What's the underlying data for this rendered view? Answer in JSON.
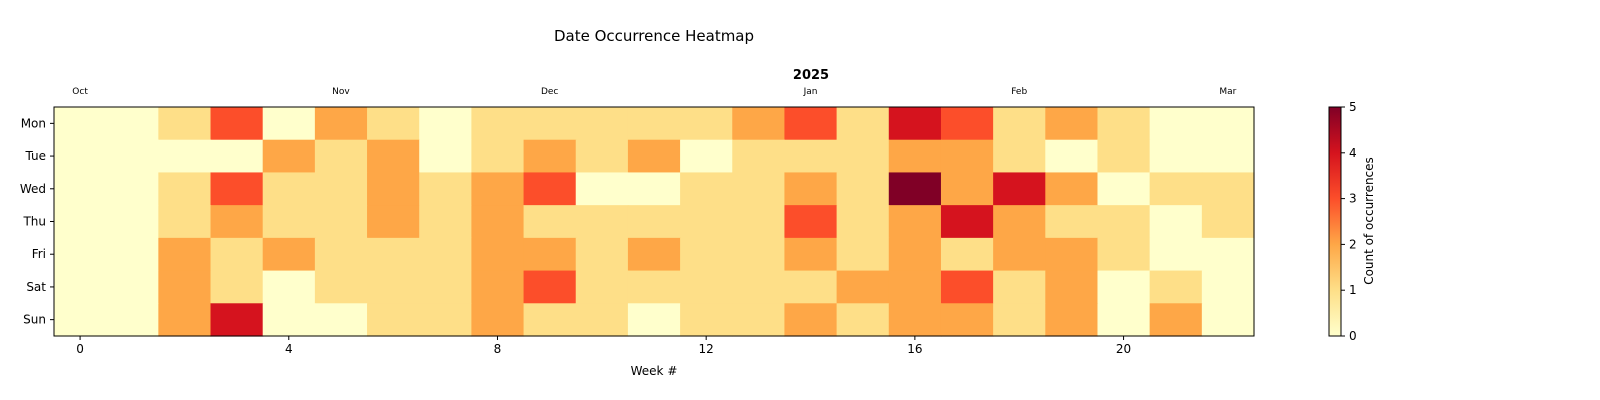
{
  "chart_data": {
    "type": "heatmap",
    "title": "Date Occurrence Heatmap",
    "xlabel": "Week #",
    "ylabel": "",
    "year_label": "2025",
    "rows": [
      "Mon",
      "Tue",
      "Wed",
      "Thu",
      "Fri",
      "Sat",
      "Sun"
    ],
    "weeks": 23,
    "x_ticks": [
      0,
      4,
      8,
      12,
      16,
      20
    ],
    "month_labels": [
      {
        "label": "Oct",
        "week": 0
      },
      {
        "label": "Nov",
        "week": 5
      },
      {
        "label": "Dec",
        "week": 9
      },
      {
        "label": "Jan",
        "week": 14
      },
      {
        "label": "Feb",
        "week": 18
      },
      {
        "label": "Mar",
        "week": 22
      }
    ],
    "values": [
      [
        0,
        0,
        1,
        3,
        0,
        2,
        1,
        0,
        1,
        1,
        1,
        1,
        1,
        2,
        3,
        1,
        4,
        3,
        1,
        2,
        1,
        0,
        0
      ],
      [
        0,
        0,
        0,
        0,
        2,
        1,
        2,
        0,
        1,
        2,
        1,
        2,
        0,
        1,
        1,
        1,
        2,
        2,
        1,
        0,
        1,
        0,
        0
      ],
      [
        0,
        0,
        1,
        3,
        1,
        1,
        2,
        1,
        2,
        3,
        0,
        0,
        1,
        1,
        2,
        1,
        5,
        2,
        4,
        2,
        0,
        1,
        1
      ],
      [
        0,
        0,
        1,
        2,
        1,
        1,
        2,
        1,
        2,
        1,
        1,
        1,
        1,
        1,
        3,
        1,
        2,
        4,
        2,
        1,
        1,
        0,
        1
      ],
      [
        0,
        0,
        2,
        1,
        2,
        1,
        1,
        1,
        2,
        2,
        1,
        2,
        1,
        1,
        2,
        1,
        2,
        1,
        2,
        2,
        1,
        0,
        0
      ],
      [
        0,
        0,
        2,
        1,
        0,
        1,
        1,
        1,
        2,
        3,
        1,
        1,
        1,
        1,
        1,
        2,
        2,
        3,
        1,
        2,
        0,
        1,
        0
      ],
      [
        0,
        0,
        2,
        4,
        0,
        0,
        1,
        1,
        2,
        1,
        1,
        0,
        1,
        1,
        2,
        1,
        2,
        2,
        1,
        2,
        0,
        2,
        0
      ]
    ],
    "colorbar": {
      "label": "Count of occurrences",
      "min": 0,
      "max": 5,
      "ticks": [
        0,
        1,
        2,
        3,
        4,
        5
      ],
      "colormap": "YlOrRd",
      "colors": [
        "#ffffcc",
        "#fedf88",
        "#fea747",
        "#fc4e2a",
        "#d5131e",
        "#800026"
      ]
    },
    "grid": false
  }
}
